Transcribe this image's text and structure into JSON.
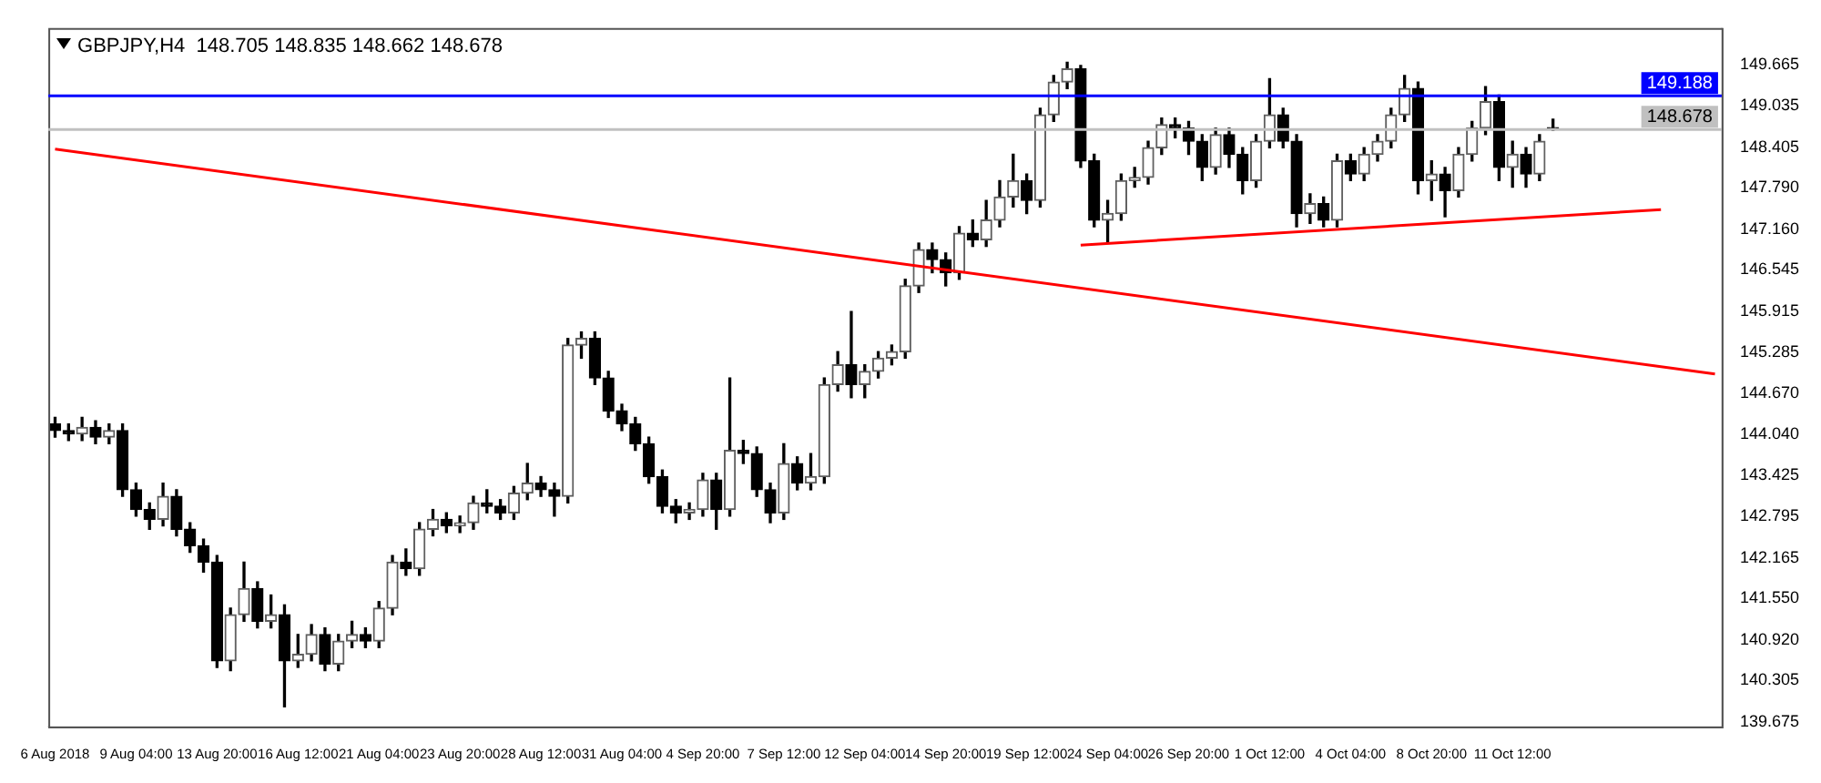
{
  "chart_data": {
    "type": "candlestick",
    "title": "GBPJPY,H4  148.705 148.835 148.662 148.678",
    "categories": [
      "6 Aug 2018",
      null,
      null,
      null,
      null,
      null,
      "9 Aug 04:00",
      null,
      null,
      null,
      null,
      null,
      "13 Aug 20:00",
      null,
      null,
      null,
      null,
      null,
      "16 Aug 12:00",
      null,
      null,
      null,
      null,
      null,
      "21 Aug 04:00",
      null,
      null,
      null,
      null,
      null,
      "23 Aug 20:00",
      null,
      null,
      null,
      null,
      null,
      "28 Aug 12:00",
      null,
      null,
      null,
      null,
      null,
      "31 Aug 04:00",
      null,
      null,
      null,
      null,
      null,
      "4 Sep 20:00",
      null,
      null,
      null,
      null,
      null,
      "7 Sep 12:00",
      null,
      null,
      null,
      null,
      null,
      "12 Sep 04:00",
      null,
      null,
      null,
      null,
      null,
      "14 Sep 20:00",
      null,
      null,
      null,
      null,
      null,
      "19 Sep 12:00",
      null,
      null,
      null,
      null,
      null,
      "24 Sep 04:00",
      null,
      null,
      null,
      null,
      null,
      "26 Sep 20:00",
      null,
      null,
      null,
      null,
      null,
      "1 Oct 12:00",
      null,
      null,
      null,
      null,
      null,
      "4 Oct 04:00",
      null,
      null,
      null,
      null,
      null,
      "8 Oct 20:00",
      null,
      null,
      null,
      null,
      null,
      "11 Oct 12:00",
      null,
      null,
      null,
      null,
      null,
      null,
      null,
      null,
      null,
      null,
      null,
      null,
      null,
      null,
      null
    ],
    "ohlc": [
      [
        144.2,
        144.3,
        144.0,
        144.1
      ],
      [
        144.1,
        144.2,
        143.95,
        144.05
      ],
      [
        144.05,
        144.3,
        143.95,
        144.15
      ],
      [
        144.15,
        144.25,
        143.9,
        144.0
      ],
      [
        144.0,
        144.2,
        143.9,
        144.1
      ],
      [
        144.1,
        144.2,
        143.1,
        143.2
      ],
      [
        143.2,
        143.3,
        142.8,
        142.9
      ],
      [
        142.9,
        143.0,
        142.6,
        142.75
      ],
      [
        142.75,
        143.3,
        142.65,
        143.1
      ],
      [
        143.1,
        143.2,
        142.5,
        142.6
      ],
      [
        142.6,
        142.7,
        142.25,
        142.35
      ],
      [
        142.35,
        142.45,
        141.95,
        142.1
      ],
      [
        142.1,
        142.2,
        140.5,
        140.6
      ],
      [
        140.6,
        141.4,
        140.45,
        141.3
      ],
      [
        141.3,
        142.1,
        141.2,
        141.7
      ],
      [
        141.7,
        141.8,
        141.1,
        141.2
      ],
      [
        141.2,
        141.6,
        141.1,
        141.3
      ],
      [
        141.3,
        141.45,
        139.9,
        140.6
      ],
      [
        140.6,
        141.0,
        140.5,
        140.7
      ],
      [
        140.7,
        141.15,
        140.6,
        141.0
      ],
      [
        141.0,
        141.1,
        140.45,
        140.55
      ],
      [
        140.55,
        141.0,
        140.45,
        140.9
      ],
      [
        140.9,
        141.2,
        140.8,
        141.0
      ],
      [
        141.0,
        141.1,
        140.8,
        140.9
      ],
      [
        140.9,
        141.5,
        140.8,
        141.4
      ],
      [
        141.4,
        142.2,
        141.3,
        142.1
      ],
      [
        142.1,
        142.3,
        141.9,
        142.0
      ],
      [
        142.0,
        142.7,
        141.9,
        142.6
      ],
      [
        142.6,
        142.9,
        142.5,
        142.75
      ],
      [
        142.75,
        142.85,
        142.55,
        142.65
      ],
      [
        142.65,
        142.8,
        142.55,
        142.7
      ],
      [
        142.7,
        143.1,
        142.6,
        143.0
      ],
      [
        143.0,
        143.2,
        142.85,
        142.95
      ],
      [
        142.95,
        143.05,
        142.75,
        142.85
      ],
      [
        142.85,
        143.25,
        142.75,
        143.15
      ],
      [
        143.15,
        143.6,
        143.05,
        143.3
      ],
      [
        143.3,
        143.4,
        143.1,
        143.2
      ],
      [
        143.2,
        143.3,
        142.8,
        143.1
      ],
      [
        143.1,
        145.5,
        143.0,
        145.4
      ],
      [
        145.4,
        145.6,
        145.2,
        145.5
      ],
      [
        145.5,
        145.6,
        144.8,
        144.9
      ],
      [
        144.9,
        145.0,
        144.3,
        144.4
      ],
      [
        144.4,
        144.5,
        144.1,
        144.2
      ],
      [
        144.2,
        144.3,
        143.8,
        143.9
      ],
      [
        143.9,
        144.0,
        143.3,
        143.4
      ],
      [
        143.4,
        143.5,
        142.85,
        142.95
      ],
      [
        142.95,
        143.05,
        142.7,
        142.85
      ],
      [
        142.85,
        143.0,
        142.75,
        142.9
      ],
      [
        142.9,
        143.45,
        142.8,
        143.35
      ],
      [
        143.35,
        143.45,
        142.6,
        142.9
      ],
      [
        142.9,
        144.9,
        142.8,
        143.8
      ],
      [
        143.8,
        143.95,
        143.6,
        143.75
      ],
      [
        143.75,
        143.85,
        143.1,
        143.2
      ],
      [
        143.2,
        143.3,
        142.7,
        142.85
      ],
      [
        142.85,
        143.9,
        142.75,
        143.6
      ],
      [
        143.6,
        143.7,
        143.2,
        143.3
      ],
      [
        143.3,
        143.75,
        143.2,
        143.4
      ],
      [
        143.4,
        144.9,
        143.3,
        144.8
      ],
      [
        144.8,
        145.3,
        144.7,
        145.1
      ],
      [
        145.1,
        145.91,
        144.6,
        144.8
      ],
      [
        144.8,
        145.1,
        144.6,
        145.0
      ],
      [
        145.0,
        145.3,
        144.9,
        145.2
      ],
      [
        145.2,
        145.4,
        145.1,
        145.3
      ],
      [
        145.3,
        146.4,
        145.2,
        146.3
      ],
      [
        146.3,
        146.95,
        146.2,
        146.85
      ],
      [
        146.85,
        146.95,
        146.5,
        146.7
      ],
      [
        146.7,
        146.8,
        146.3,
        146.5
      ],
      [
        146.5,
        147.2,
        146.4,
        147.1
      ],
      [
        147.1,
        147.3,
        146.9,
        147.0
      ],
      [
        147.0,
        147.6,
        146.9,
        147.3
      ],
      [
        147.3,
        147.9,
        147.2,
        147.65
      ],
      [
        147.65,
        148.3,
        147.5,
        147.9
      ],
      [
        147.9,
        148.0,
        147.4,
        147.6
      ],
      [
        147.6,
        149.0,
        147.5,
        148.9
      ],
      [
        148.9,
        149.5,
        148.8,
        149.4
      ],
      [
        149.4,
        149.7,
        149.3,
        149.6
      ],
      [
        149.6,
        149.65,
        148.1,
        148.2
      ],
      [
        148.2,
        148.3,
        147.2,
        147.3
      ],
      [
        147.3,
        147.6,
        146.95,
        147.4
      ],
      [
        147.4,
        148.0,
        147.3,
        147.9
      ],
      [
        147.9,
        148.1,
        147.8,
        147.95
      ],
      [
        147.95,
        148.5,
        147.85,
        148.4
      ],
      [
        148.4,
        148.85,
        148.3,
        148.75
      ],
      [
        148.75,
        148.85,
        148.55,
        148.7
      ],
      [
        148.7,
        148.8,
        148.3,
        148.5
      ],
      [
        148.5,
        148.6,
        147.9,
        148.1
      ],
      [
        148.1,
        148.7,
        148.0,
        148.6
      ],
      [
        148.6,
        148.7,
        148.1,
        148.3
      ],
      [
        148.3,
        148.4,
        147.7,
        147.9
      ],
      [
        147.9,
        148.6,
        147.8,
        148.5
      ],
      [
        148.5,
        149.45,
        148.4,
        148.9
      ],
      [
        148.9,
        149.0,
        148.4,
        148.5
      ],
      [
        148.5,
        148.6,
        147.2,
        147.4
      ],
      [
        147.4,
        147.7,
        147.25,
        147.55
      ],
      [
        147.55,
        147.65,
        147.2,
        147.3
      ],
      [
        147.3,
        148.3,
        147.2,
        148.2
      ],
      [
        148.2,
        148.3,
        147.9,
        148.0
      ],
      [
        148.0,
        148.4,
        147.9,
        148.3
      ],
      [
        148.3,
        148.6,
        148.2,
        148.5
      ],
      [
        148.5,
        149.0,
        148.4,
        148.9
      ],
      [
        148.9,
        149.5,
        148.8,
        149.3
      ],
      [
        149.3,
        149.4,
        147.7,
        147.9
      ],
      [
        147.9,
        148.2,
        147.6,
        148.0
      ],
      [
        148.0,
        148.1,
        147.35,
        147.75
      ],
      [
        147.75,
        148.4,
        147.65,
        148.3
      ],
      [
        148.3,
        148.8,
        148.2,
        148.7
      ],
      [
        148.7,
        149.33,
        148.6,
        149.1
      ],
      [
        149.1,
        149.2,
        147.9,
        148.1
      ],
      [
        148.1,
        148.5,
        147.8,
        148.3
      ],
      [
        148.3,
        148.4,
        147.8,
        148.0
      ],
      [
        148.0,
        148.6,
        147.9,
        148.5
      ],
      [
        148.705,
        148.835,
        148.662,
        148.678
      ],
      null,
      null,
      null,
      null,
      null,
      null,
      null,
      null,
      null,
      null,
      null,
      null
    ],
    "series": [
      {
        "type": "line",
        "color": "#ff0000",
        "values": [
          148.38,
          null,
          null,
          null,
          null,
          null,
          null,
          null,
          null,
          null,
          null,
          null,
          null,
          null,
          null,
          null,
          null,
          null,
          null,
          null,
          null,
          null,
          null,
          null,
          null,
          null,
          null,
          null,
          null,
          null,
          null,
          null,
          null,
          null,
          null,
          null,
          null,
          null,
          null,
          null,
          null,
          null,
          null,
          null,
          null,
          null,
          null,
          null,
          null,
          null,
          null,
          null,
          null,
          null,
          null,
          null,
          null,
          null,
          null,
          null,
          null,
          null,
          null,
          null,
          null,
          null,
          null,
          null,
          null,
          null,
          null,
          null,
          null,
          null,
          null,
          null,
          null,
          null,
          null,
          null,
          null,
          null,
          null,
          null,
          null,
          null,
          null,
          null,
          null,
          null,
          null,
          null,
          null,
          null,
          null,
          null,
          null,
          null,
          null,
          null,
          null,
          null,
          null,
          null,
          null,
          null,
          null,
          null,
          null,
          null,
          null,
          null,
          null,
          null,
          null,
          null,
          null,
          null,
          null,
          null,
          null,
          null,
          null,
          144.96
        ]
      },
      {
        "type": "line",
        "color": "#ff0000",
        "values": [
          null,
          null,
          null,
          null,
          null,
          null,
          null,
          null,
          null,
          null,
          null,
          null,
          null,
          null,
          null,
          null,
          null,
          null,
          null,
          null,
          null,
          null,
          null,
          null,
          null,
          null,
          null,
          null,
          null,
          null,
          null,
          null,
          null,
          null,
          null,
          null,
          null,
          null,
          null,
          null,
          null,
          null,
          null,
          null,
          null,
          null,
          null,
          null,
          null,
          null,
          null,
          null,
          null,
          null,
          null,
          null,
          null,
          null,
          null,
          null,
          null,
          null,
          null,
          null,
          null,
          null,
          null,
          null,
          null,
          null,
          null,
          null,
          null,
          null,
          null,
          null,
          146.92,
          null,
          null,
          null,
          null,
          null,
          null,
          null,
          null,
          null,
          null,
          null,
          null,
          null,
          null,
          null,
          null,
          null,
          null,
          null,
          null,
          null,
          null,
          null,
          null,
          null,
          null,
          null,
          null,
          null,
          null,
          null,
          null,
          null,
          null,
          null,
          null,
          null,
          null,
          null,
          null,
          null,
          null,
          147.46,
          null,
          null,
          null,
          null
        ]
      }
    ],
    "ylim": [
      139.6,
      150.22
    ],
    "yticks": [
      149.665,
      149.035,
      148.405,
      {
        "value": 147.79,
        "label": "147.790"
      },
      {
        "value": 147.16,
        "label": "147.160"
      },
      146.545,
      145.915,
      145.285,
      {
        "value": 144.67,
        "label": "144.670"
      },
      {
        "value": 144.04,
        "label": "144.040"
      },
      143.425,
      142.795,
      142.165,
      {
        "value": 141.55,
        "label": "141.550"
      },
      {
        "value": 140.92,
        "label": "140.920"
      },
      140.305,
      139.675
    ],
    "ref_lines": [
      {
        "axis": "y",
        "value": 149.188,
        "label": "149.188",
        "color": "#0000ff"
      },
      {
        "axis": "y",
        "value": 148.678,
        "label": "148.678",
        "color": "#c0c0c0"
      }
    ]
  }
}
